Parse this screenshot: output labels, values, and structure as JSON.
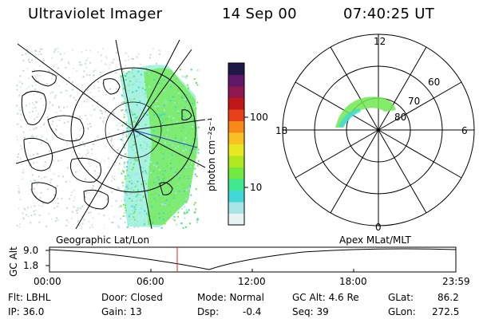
{
  "header": {
    "instrument": "Ultraviolet Imager",
    "date": "14 Sep 00",
    "time": "07:40:25 UT"
  },
  "colorbar": {
    "label": "photon cm⁻²s⁻¹",
    "ticks": [
      "100",
      "10"
    ],
    "colors": [
      "#e8f4f4",
      "#a8e4e4",
      "#40d8d8",
      "#40e890",
      "#70ea40",
      "#b0e820",
      "#e8e820",
      "#f8c020",
      "#f88818",
      "#e84018",
      "#c01818",
      "#901850",
      "#601868",
      "#201848"
    ]
  },
  "polar_plot": {
    "mlt_labels": {
      "top": "12",
      "left": "18",
      "right": "6",
      "bottom": "0"
    },
    "lat_labels": [
      "60",
      "70",
      "80"
    ]
  },
  "timeline": {
    "left_label": "Geographic Lat/Lon",
    "right_label": "Apex MLat/MLT",
    "axis_title": "GC Alt",
    "y_ticks": [
      "9.0",
      "1.8"
    ],
    "x_ticks": [
      "00:00",
      "06:00",
      "12:00",
      "18:00",
      "23:59"
    ],
    "current_time_marker": "07:40"
  },
  "info": {
    "flt": "Flt: LBHL",
    "ip": "IP: 36.0",
    "door": "Door: Closed",
    "gain": "Gain: 13",
    "mode": "Mode: Normal",
    "dsp_label": "Dsp:",
    "dsp_value": "-0.4",
    "gcalt": "GC Alt: 4.6 Re",
    "seq": "Seq: 39",
    "glat": "GLat:",
    "glat_value": "86.2",
    "glon": "GLon:",
    "glon_value": "272.5"
  }
}
